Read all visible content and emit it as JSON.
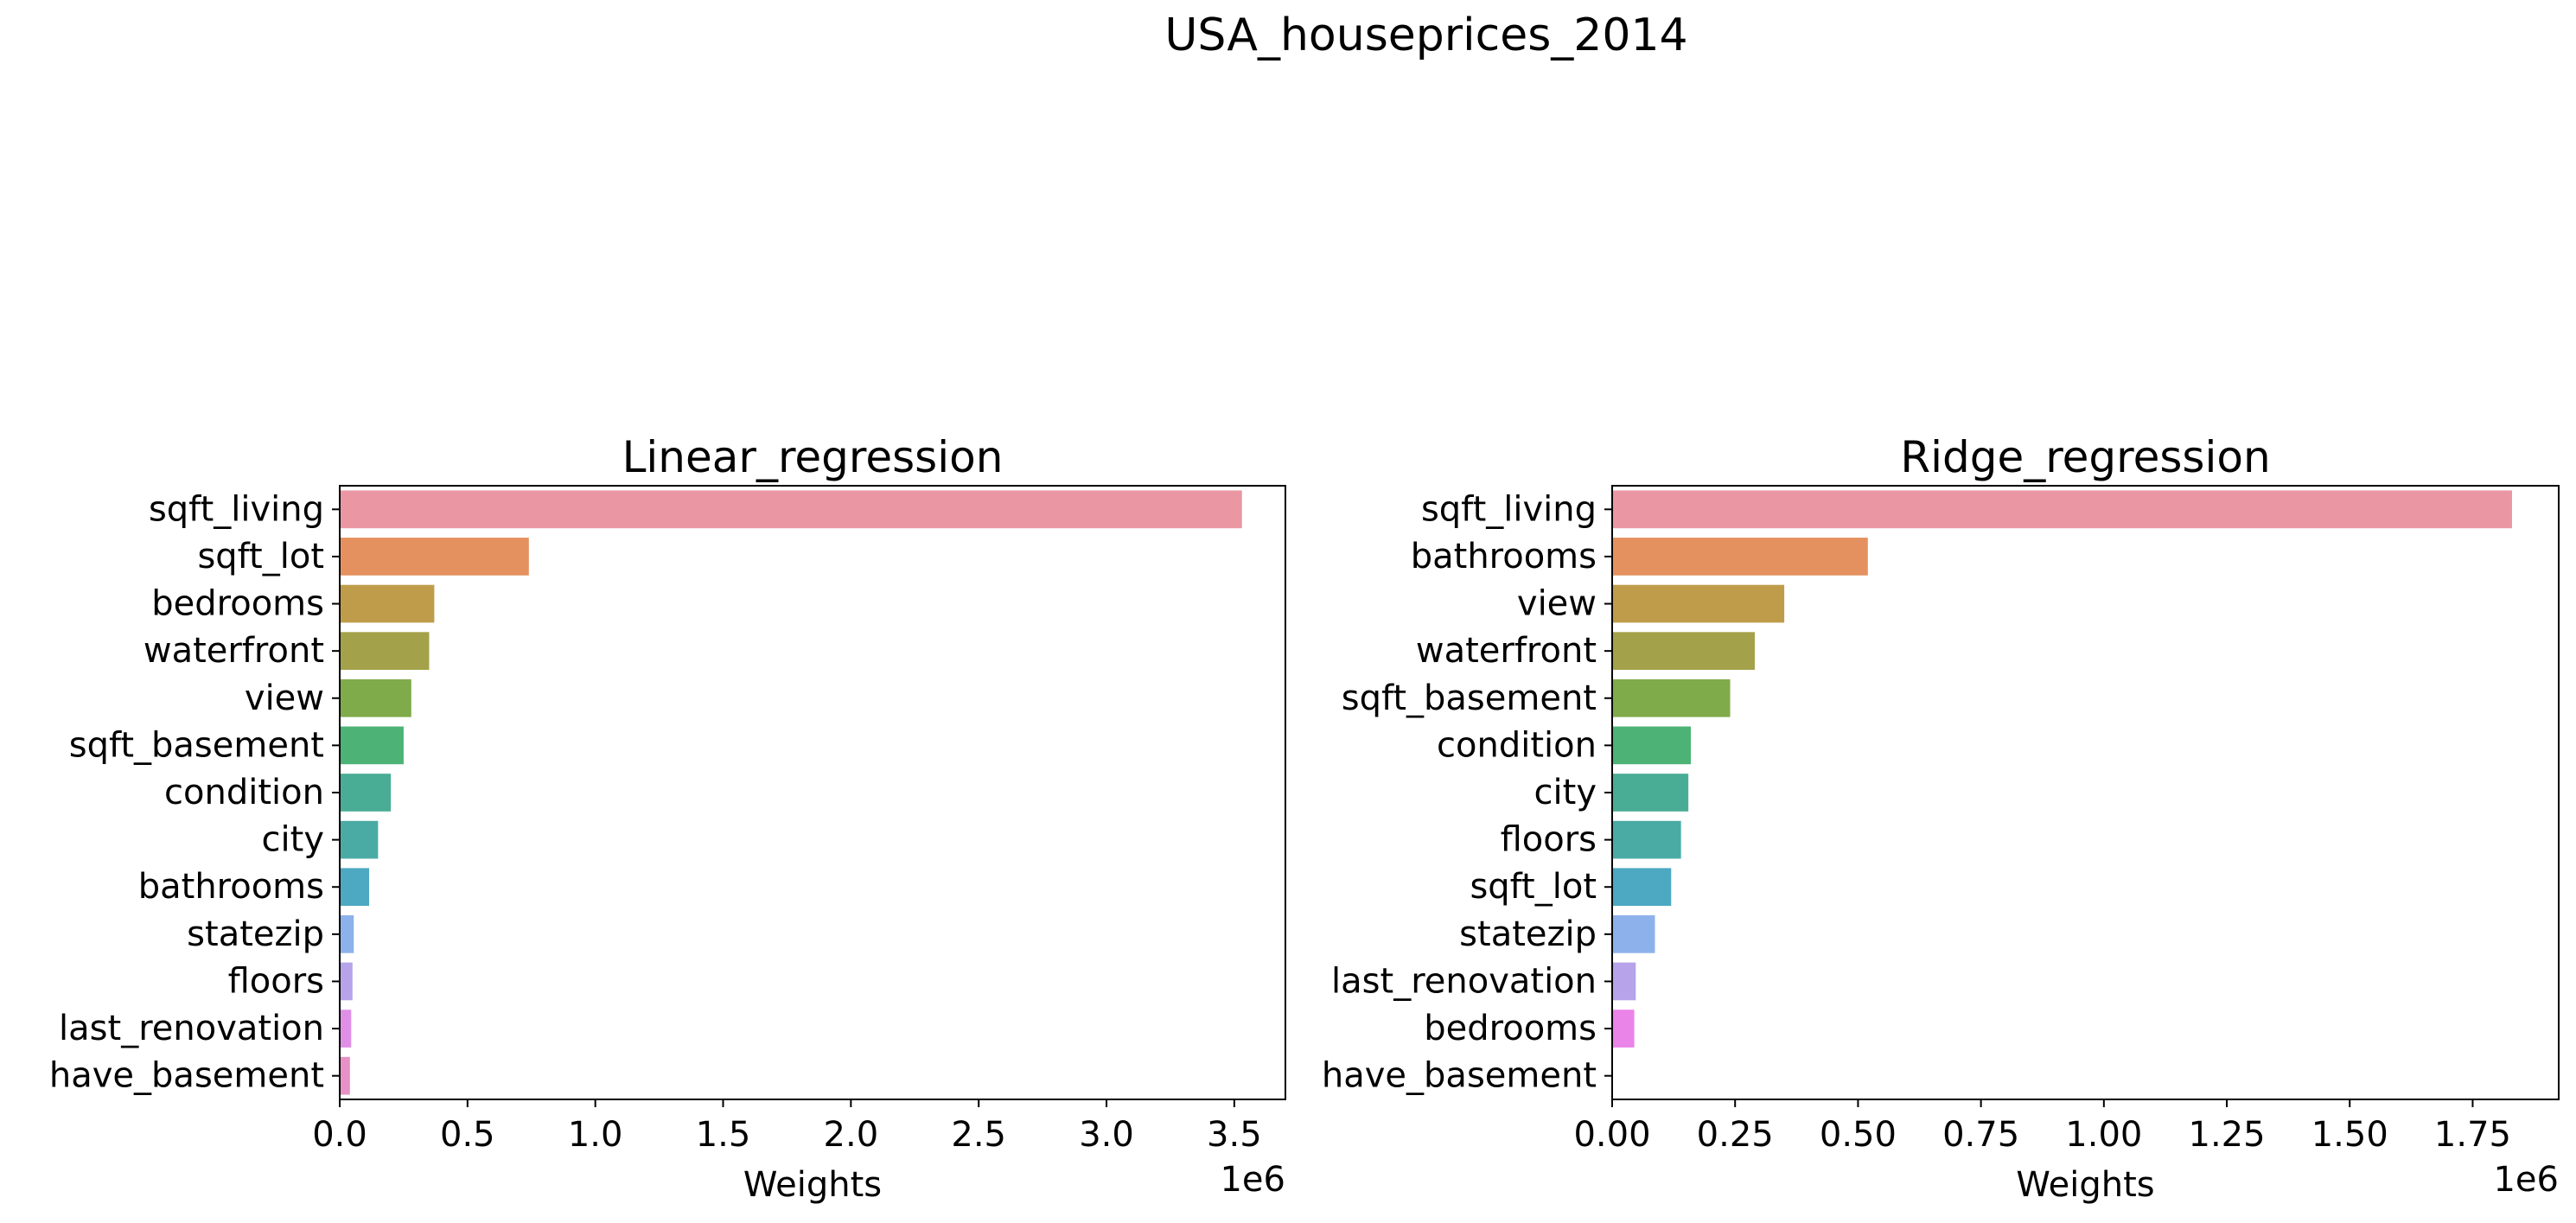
{
  "figure": {
    "suptitle": "USA_houseprices_2014"
  },
  "chart_data": [
    {
      "type": "bar",
      "orientation": "horizontal",
      "title": "Linear_regression",
      "xlabel": "Weights",
      "ylabel": "",
      "xlim": [
        0,
        3700000
      ],
      "x_ticks": [
        0,
        500000,
        1000000,
        1500000,
        2000000,
        2500000,
        3000000,
        3500000
      ],
      "x_tick_labels": [
        "0.0",
        "0.5",
        "1.0",
        "1.5",
        "2.0",
        "2.5",
        "3.0",
        "3.5"
      ],
      "offset_label": "1e6",
      "grid": false,
      "categories": [
        "sqft_living",
        "sqft_lot",
        "bedrooms",
        "waterfront",
        "view",
        "sqft_basement",
        "condition",
        "city",
        "bathrooms",
        "statezip",
        "floors",
        "last_renovation",
        "have_basement"
      ],
      "values": [
        3530000,
        740000,
        370000,
        350000,
        280000,
        250000,
        200000,
        150000,
        115000,
        55000,
        50000,
        45000,
        40000
      ],
      "colors": [
        "#ea96a3",
        "#e5915f",
        "#bf9c4a",
        "#a3a24a",
        "#7fab4a",
        "#4db276",
        "#49ad95",
        "#4aaba5",
        "#4da8c1",
        "#8db1ea",
        "#b6a3ea",
        "#df90e6",
        "#e891c6"
      ]
    },
    {
      "type": "bar",
      "orientation": "horizontal",
      "title": "Ridge_regression",
      "xlabel": "Weights",
      "ylabel": "",
      "xlim": [
        0,
        1925000
      ],
      "x_ticks": [
        0,
        250000,
        500000,
        750000,
        1000000,
        1250000,
        1500000,
        1750000
      ],
      "x_tick_labels": [
        "0.00",
        "0.25",
        "0.50",
        "0.75",
        "1.00",
        "1.25",
        "1.50",
        "1.75"
      ],
      "offset_label": "1e6",
      "grid": false,
      "categories": [
        "sqft_living",
        "bathrooms",
        "view",
        "waterfront",
        "sqft_basement",
        "condition",
        "city",
        "floors",
        "sqft_lot",
        "statezip",
        "last_renovation",
        "bedrooms",
        "have_basement"
      ],
      "values": [
        1830000,
        520000,
        350000,
        290000,
        240000,
        160000,
        155000,
        140000,
        120000,
        87000,
        48000,
        45000,
        0
      ],
      "colors": [
        "#ea96a3",
        "#e5915f",
        "#bf9c4a",
        "#a3a24a",
        "#7fab4a",
        "#4db276",
        "#49ad95",
        "#4aaba5",
        "#4da8c1",
        "#8db1ea",
        "#b6a3ea",
        "#ea84e8",
        "#e891c6"
      ]
    }
  ]
}
